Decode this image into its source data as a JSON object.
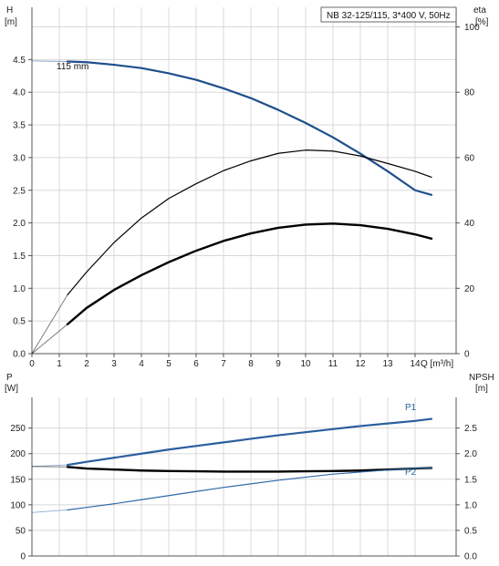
{
  "chart_data": {
    "type": "line",
    "title": "NB 32-125/115, 3*400 V, 50Hz",
    "colors": {
      "head": "#1f4e8c",
      "p1": "#2a5f9e",
      "p2": "#2f6aa8",
      "black": "#000000",
      "grid": "#d8d8d8",
      "axis": "#555555"
    },
    "top": {
      "left_axis": {
        "label_line1": "H",
        "label_line2": "[m]",
        "ylim": [
          0,
          5.3
        ],
        "ticks": [
          "0.0",
          "0.5",
          "1.0",
          "1.5",
          "2.0",
          "2.5",
          "3.0",
          "3.5",
          "4.0",
          "4.5"
        ]
      },
      "right_axis": {
        "label_line1": "eta",
        "label_line2": "[%]",
        "ylim": [
          0,
          106
        ],
        "ticks": [
          "0",
          "20",
          "40",
          "60",
          "80",
          "100"
        ]
      },
      "x_axis": {
        "label": "Q [m³/h]",
        "xlim": [
          0,
          15.5
        ],
        "ticks": [
          "0",
          "1",
          "2",
          "3",
          "4",
          "5",
          "6",
          "7",
          "8",
          "9",
          "10",
          "11",
          "12",
          "13",
          "14"
        ]
      },
      "curve_label": "115 mm",
      "series": [
        {
          "id": "head",
          "x": [
            0,
            1.3,
            2,
            3,
            4,
            5,
            6,
            7,
            8,
            9,
            10,
            11,
            12,
            13,
            14,
            14.6
          ],
          "y": [
            4.48,
            4.47,
            4.46,
            4.42,
            4.37,
            4.29,
            4.19,
            4.06,
            3.91,
            3.73,
            3.53,
            3.31,
            3.06,
            2.79,
            2.5,
            2.43
          ]
        },
        {
          "id": "eta-thin",
          "x": [
            0,
            1.3,
            2,
            3,
            4,
            5,
            6,
            7,
            8,
            9,
            10,
            11,
            12,
            13,
            14,
            14.6
          ],
          "y": [
            0,
            18,
            25,
            34,
            41.5,
            47.5,
            52,
            56,
            59,
            61.3,
            62.3,
            62,
            60.5,
            58.2,
            55.8,
            54
          ]
        },
        {
          "id": "eta-bold",
          "x": [
            0,
            1.3,
            2,
            3,
            4,
            5,
            6,
            7,
            8,
            9,
            10,
            11,
            12,
            13,
            14,
            14.6
          ],
          "y": [
            0,
            9,
            14,
            19.5,
            24,
            28,
            31.5,
            34.5,
            36.8,
            38.5,
            39.5,
            39.8,
            39.3,
            38.2,
            36.5,
            35.2
          ]
        }
      ]
    },
    "bottom": {
      "left_axis": {
        "label_line1": "P",
        "label_line2": "[W]",
        "ylim": [
          0,
          310
        ],
        "ticks": [
          "0",
          "50",
          "100",
          "150",
          "200",
          "250"
        ]
      },
      "right_axis": {
        "label_line1": "NPSH",
        "label_line2": "[m]",
        "ylim": [
          0,
          3.1
        ],
        "ticks": [
          "0.0",
          "0.5",
          "1.0",
          "1.5",
          "2.0",
          "2.5"
        ]
      },
      "x_axis": {
        "xlim": [
          0,
          15.5
        ]
      },
      "series": [
        {
          "id": "P1",
          "name": "P1",
          "x": [
            0,
            1.3,
            2,
            3,
            4,
            5,
            6,
            7,
            8,
            9,
            10,
            11,
            12,
            13,
            14,
            14.6
          ],
          "y": [
            175,
            178,
            184,
            192,
            200,
            208,
            215,
            222,
            229,
            236,
            242,
            248,
            254,
            259,
            264,
            268
          ]
        },
        {
          "id": "NPSH",
          "name": "",
          "x": [
            0,
            1.3,
            2,
            3,
            4,
            5,
            6,
            7,
            8,
            9,
            10,
            11,
            12,
            13,
            14,
            14.6
          ],
          "y": [
            1.75,
            1.74,
            1.71,
            1.69,
            1.67,
            1.66,
            1.655,
            1.65,
            1.65,
            1.65,
            1.655,
            1.66,
            1.67,
            1.69,
            1.71,
            1.72
          ]
        },
        {
          "id": "P2",
          "name": "P2",
          "x": [
            0,
            1.3,
            2,
            3,
            4,
            5,
            6,
            7,
            8,
            9,
            10,
            11,
            12,
            13,
            14,
            14.6
          ],
          "y": [
            85,
            90,
            95,
            102,
            110,
            118,
            126,
            134,
            141,
            148,
            154,
            160,
            164,
            168,
            171,
            172
          ]
        }
      ]
    }
  }
}
